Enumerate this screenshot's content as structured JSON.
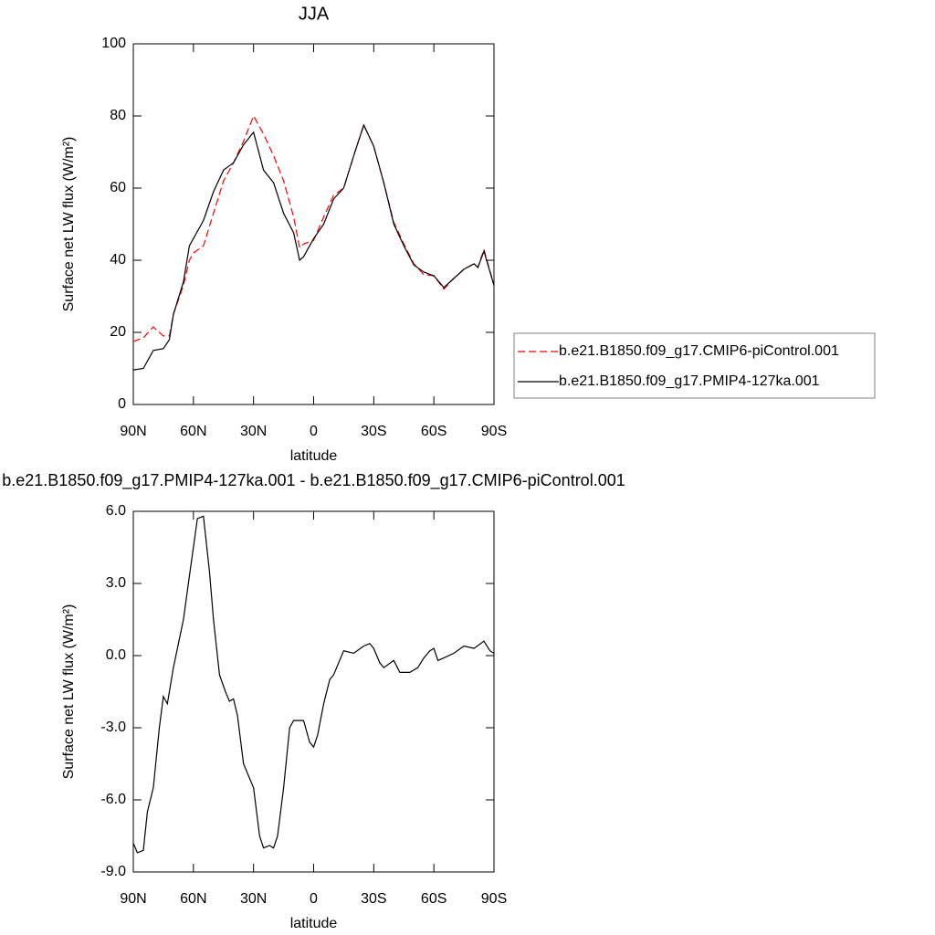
{
  "chart_data": [
    {
      "type": "line",
      "title": "JJA",
      "xlabel": "latitude",
      "ylabel": "Surface net LW flux (W/m²)",
      "x": [
        90,
        85,
        80,
        75,
        72,
        70,
        65,
        62,
        60,
        55,
        50,
        45,
        40,
        35,
        30,
        25,
        20,
        15,
        10,
        7,
        5,
        0,
        -5,
        -10,
        -15,
        -20,
        -25,
        -30,
        -35,
        -40,
        -45,
        -50,
        -55,
        -60,
        -65,
        -70,
        -75,
        -80,
        -82,
        -85,
        -90
      ],
      "series": [
        {
          "name": "b.e21.B1850.f09_g17.CMIP6-piControl.001",
          "color": "#ff0000",
          "dash": true,
          "values": [
            17.5,
            18.5,
            21.5,
            19,
            19,
            25,
            33,
            40,
            42,
            44,
            53,
            62,
            67,
            73,
            80,
            75,
            69,
            62,
            52,
            43.5,
            44.5,
            45.5,
            52,
            58,
            60,
            69,
            77.5,
            71.6,
            61.5,
            50.5,
            44.5,
            39,
            36,
            35.7,
            32,
            35,
            37.5,
            39,
            38,
            43,
            33
          ]
        },
        {
          "name": "b.e21.B1850.f09_g17.PMIP4-127ka.001",
          "color": "#000000",
          "dash": false,
          "values": [
            9.6,
            10,
            15,
            15.5,
            18,
            25,
            34,
            44,
            46,
            51,
            59,
            65,
            67,
            72,
            75.5,
            65,
            61.5,
            53,
            47.6,
            40,
            41,
            46,
            50,
            57,
            60,
            69,
            77.5,
            71.6,
            61.5,
            50,
            44,
            38.7,
            36.7,
            35.7,
            32.4,
            35,
            37.5,
            39,
            38,
            42.5,
            33
          ]
        }
      ],
      "xlim": [
        90,
        -90
      ],
      "xticks": [
        {
          "value": 90,
          "label": "90N"
        },
        {
          "value": 60,
          "label": "60N"
        },
        {
          "value": 30,
          "label": "30N"
        },
        0,
        {
          "value": -30,
          "label": "30S"
        },
        {
          "value": -60,
          "label": "60S"
        },
        {
          "value": -90,
          "label": "90S"
        }
      ],
      "ylim": [
        0,
        100
      ],
      "yticks": [
        0,
        20,
        40,
        60,
        80,
        100
      ]
    },
    {
      "type": "line",
      "title": "b.e21.B1850.f09_g17.PMIP4-127ka.001 - b.e21.B1850.f09_g17.CMIP6-piControl.001",
      "xlabel": "latitude",
      "ylabel": "Surface net LW flux (W/m²)",
      "x": [
        90,
        88,
        85,
        83,
        80,
        77,
        75,
        73,
        70,
        65,
        62,
        58,
        55,
        52,
        50,
        47,
        44,
        42,
        40,
        38,
        35,
        30,
        27,
        25,
        22,
        20,
        18,
        15,
        12,
        10,
        7,
        5,
        2,
        0,
        -2,
        -5,
        -8,
        -10,
        -15,
        -20,
        -25,
        -28,
        -30,
        -33,
        -35,
        -40,
        -43,
        -48,
        -52,
        -55,
        -58,
        -60,
        -62,
        -65,
        -70,
        -75,
        -80,
        -85,
        -88,
        -90
      ],
      "series": [
        {
          "color": "#000000",
          "dash": false,
          "values": [
            -7.8,
            -8.2,
            -8.1,
            -6.5,
            -5.5,
            -3,
            -1.7,
            -2,
            -0.5,
            1.5,
            3.3,
            5.7,
            5.8,
            3.5,
            1.5,
            -0.8,
            -1.5,
            -1.9,
            -1.8,
            -2.5,
            -4.5,
            -5.5,
            -7.5,
            -8,
            -7.9,
            -8,
            -7.5,
            -5.5,
            -3,
            -2.7,
            -2.7,
            -2.7,
            -3.6,
            -3.8,
            -3.3,
            -2,
            -1,
            -0.8,
            0.2,
            0.1,
            0.4,
            0.5,
            0.3,
            -0.3,
            -0.5,
            -0.2,
            -0.7,
            -0.7,
            -0.5,
            -0.1,
            0.2,
            0.3,
            -0.2,
            -0.1,
            0.1,
            0.4,
            0.3,
            0.6,
            0.2,
            0.1
          ]
        }
      ],
      "xlim": [
        90,
        -90
      ],
      "xticks": [
        {
          "value": 90,
          "label": "90N"
        },
        {
          "value": 60,
          "label": "60N"
        },
        {
          "value": 30,
          "label": "30N"
        },
        0,
        {
          "value": -30,
          "label": "30S"
        },
        {
          "value": -60,
          "label": "60S"
        },
        {
          "value": -90,
          "label": "90S"
        }
      ],
      "ylim": [
        -9,
        6
      ],
      "yticks": [
        {
          "value": -9,
          "label": "-9.0"
        },
        {
          "value": -6,
          "label": "-6.0"
        },
        {
          "value": -3,
          "label": "-3.0"
        },
        {
          "value": 0,
          "label": "0.0"
        },
        {
          "value": 3,
          "label": "3.0"
        },
        {
          "value": 6,
          "label": "6.0"
        }
      ]
    }
  ]
}
